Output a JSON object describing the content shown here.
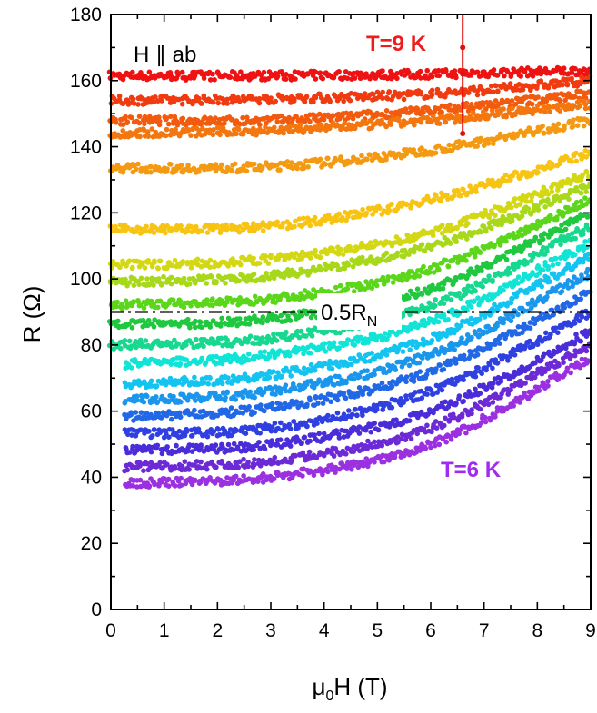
{
  "chart_data": {
    "type": "scatter",
    "xlabel_main": "μ",
    "xlabel_sub": "0",
    "xlabel_rest": "H (T)",
    "ylabel": "R (Ω)",
    "xlim": [
      0,
      9
    ],
    "ylim": [
      0,
      180
    ],
    "xticks": [
      "0",
      "1",
      "2",
      "3",
      "4",
      "5",
      "6",
      "7",
      "8",
      "9"
    ],
    "yticks": [
      "0",
      "20",
      "40",
      "60",
      "80",
      "100",
      "120",
      "140",
      "160",
      "180"
    ],
    "annotations": {
      "field_orientation": "H ∥ ab",
      "top_label": "T=9 K",
      "bottom_label": "T=6 K",
      "ref_main": "0.5R",
      "ref_sub": "N"
    },
    "reference_line": {
      "y": 90,
      "style": "dash-dot",
      "color": "#000000"
    },
    "colors": {
      "top_label": "#ee1c1c",
      "bottom_label": "#a12bf0"
    },
    "series": [
      {
        "color": "#ee1212",
        "values": [
          {
            "x": 0,
            "y": 161.5
          },
          {
            "x": 3,
            "y": 161.5
          },
          {
            "x": 6,
            "y": 162
          },
          {
            "x": 9,
            "y": 163
          }
        ]
      },
      {
        "color": "#f03a10",
        "values": [
          {
            "x": 0,
            "y": 154
          },
          {
            "x": 3,
            "y": 154.5
          },
          {
            "x": 6,
            "y": 156
          },
          {
            "x": 9,
            "y": 160
          }
        ]
      },
      {
        "color": "#f25a0e",
        "values": [
          {
            "x": 0,
            "y": 148
          },
          {
            "x": 3,
            "y": 148
          },
          {
            "x": 6,
            "y": 151
          },
          {
            "x": 9,
            "y": 156
          }
        ]
      },
      {
        "color": "#f4760e",
        "values": [
          {
            "x": 0,
            "y": 144
          },
          {
            "x": 3,
            "y": 145
          },
          {
            "x": 6,
            "y": 148
          },
          {
            "x": 9,
            "y": 153
          }
        ]
      },
      {
        "color": "#f49a12",
        "values": [
          {
            "x": 0,
            "y": 133.5
          },
          {
            "x": 3,
            "y": 134
          },
          {
            "x": 6,
            "y": 139
          },
          {
            "x": 9,
            "y": 148
          }
        ]
      },
      {
        "color": "#f8c414",
        "values": [
          {
            "x": 0,
            "y": 115
          },
          {
            "x": 3,
            "y": 116
          },
          {
            "x": 6,
            "y": 124
          },
          {
            "x": 9,
            "y": 138
          }
        ]
      },
      {
        "color": "#d4d814",
        "values": [
          {
            "x": 0,
            "y": 104
          },
          {
            "x": 3,
            "y": 106
          },
          {
            "x": 6,
            "y": 114
          },
          {
            "x": 9,
            "y": 132
          }
        ]
      },
      {
        "color": "#a8d81a",
        "values": [
          {
            "x": 0,
            "y": 99
          },
          {
            "x": 3,
            "y": 101
          },
          {
            "x": 6,
            "y": 110
          },
          {
            "x": 9,
            "y": 128
          }
        ]
      },
      {
        "color": "#5cd61a",
        "values": [
          {
            "x": 0,
            "y": 92
          },
          {
            "x": 3,
            "y": 94
          },
          {
            "x": 6,
            "y": 103
          },
          {
            "x": 9,
            "y": 124
          }
        ]
      },
      {
        "color": "#20c840",
        "values": [
          {
            "x": 0,
            "y": 86
          },
          {
            "x": 3,
            "y": 88
          },
          {
            "x": 6,
            "y": 97
          },
          {
            "x": 9,
            "y": 120
          }
        ]
      },
      {
        "color": "#18d890",
        "values": [
          {
            "x": 0,
            "y": 80
          },
          {
            "x": 3,
            "y": 82
          },
          {
            "x": 6,
            "y": 92
          },
          {
            "x": 9,
            "y": 116
          }
        ]
      },
      {
        "color": "#10e4d6",
        "values": [
          {
            "x": 0,
            "y": 74
          },
          {
            "x": 3,
            "y": 77
          },
          {
            "x": 6,
            "y": 87
          },
          {
            "x": 9,
            "y": 111
          }
        ]
      },
      {
        "color": "#14c4f0",
        "values": [
          {
            "x": 0,
            "y": 68
          },
          {
            "x": 3,
            "y": 71
          },
          {
            "x": 6,
            "y": 82
          },
          {
            "x": 9,
            "y": 107
          }
        ]
      },
      {
        "color": "#1a96ec",
        "values": [
          {
            "x": 0,
            "y": 63
          },
          {
            "x": 3,
            "y": 66
          },
          {
            "x": 6,
            "y": 77
          },
          {
            "x": 9,
            "y": 102
          }
        ]
      },
      {
        "color": "#2268e6",
        "values": [
          {
            "x": 0,
            "y": 58
          },
          {
            "x": 3,
            "y": 61
          },
          {
            "x": 6,
            "y": 72
          },
          {
            "x": 9,
            "y": 96
          }
        ]
      },
      {
        "color": "#3040e0",
        "values": [
          {
            "x": 0,
            "y": 53
          },
          {
            "x": 3,
            "y": 55
          },
          {
            "x": 6,
            "y": 66
          },
          {
            "x": 9,
            "y": 90
          }
        ]
      },
      {
        "color": "#4a2cd8",
        "values": [
          {
            "x": 0,
            "y": 48
          },
          {
            "x": 3,
            "y": 50
          },
          {
            "x": 6,
            "y": 60
          },
          {
            "x": 9,
            "y": 84
          }
        ]
      },
      {
        "color": "#6c2ad6",
        "values": [
          {
            "x": 0,
            "y": 43
          },
          {
            "x": 3,
            "y": 45
          },
          {
            "x": 6,
            "y": 55
          },
          {
            "x": 9,
            "y": 80
          }
        ]
      },
      {
        "color": "#9a30e0",
        "values": [
          {
            "x": 0,
            "y": 38
          },
          {
            "x": 3,
            "y": 40
          },
          {
            "x": 6,
            "y": 50
          },
          {
            "x": 9,
            "y": 76
          }
        ]
      }
    ],
    "grid": false
  }
}
